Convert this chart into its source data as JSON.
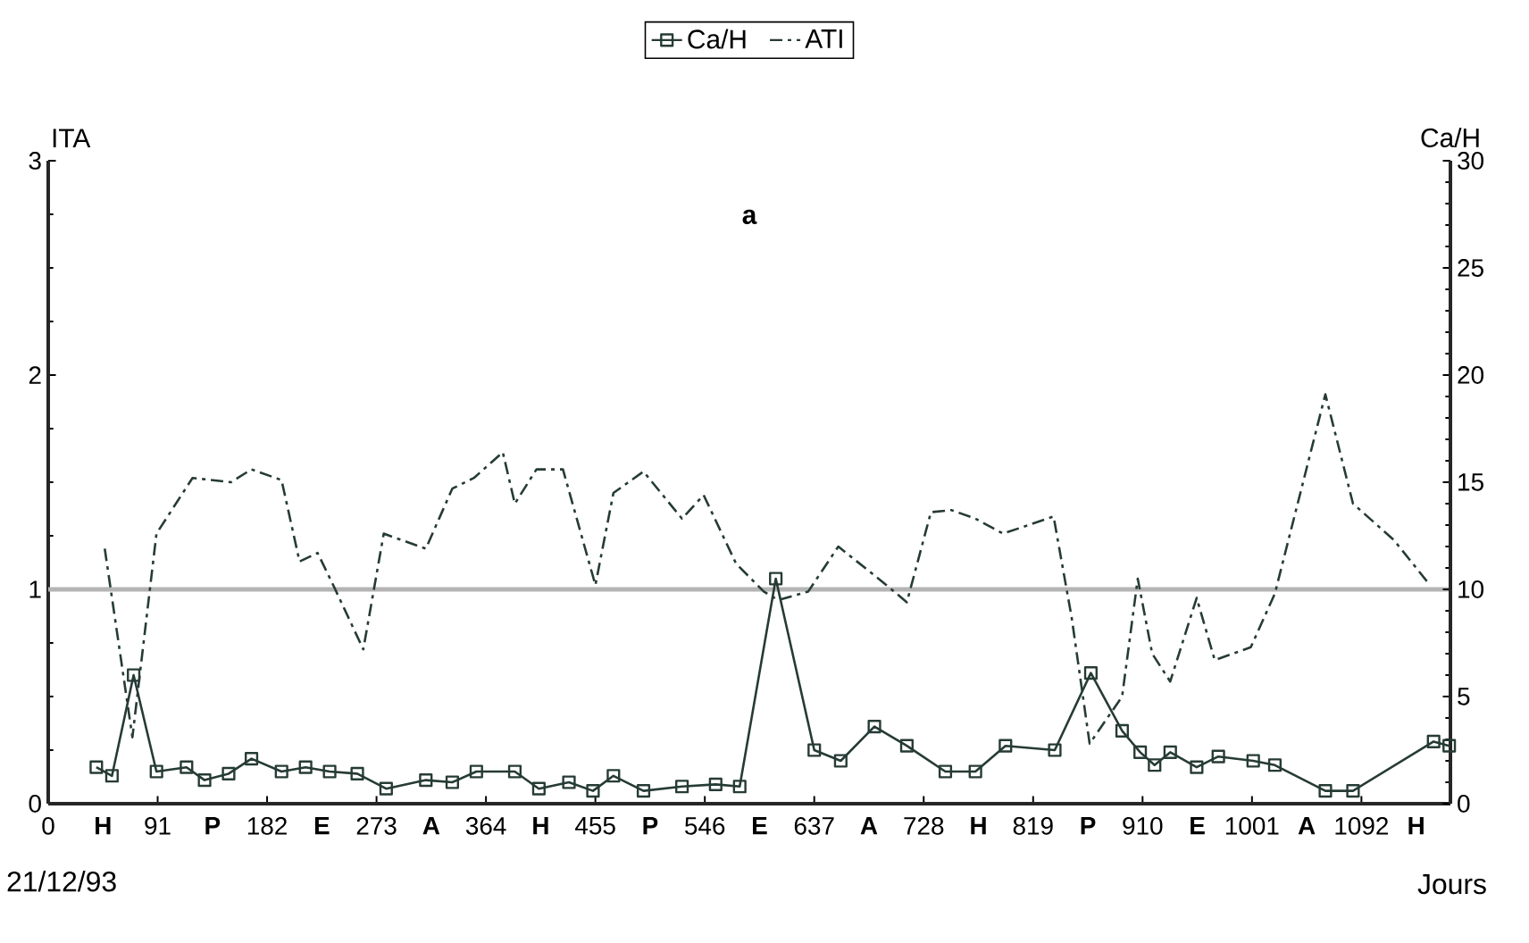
{
  "chart_data": {
    "type": "line",
    "title": "a",
    "xlabel": "Jours",
    "ylabel": "ITA",
    "y2label": "Ca/H",
    "annotations": [
      "21/12/93"
    ],
    "xlim": [
      0,
      1166
    ],
    "xticks": [
      0,
      {
        "value": 45.5,
        "label": "H"
      },
      91,
      {
        "value": 136.5,
        "label": "P"
      },
      182,
      {
        "value": 227.5,
        "label": "E"
      },
      273,
      {
        "value": 318.5,
        "label": "A"
      },
      364,
      {
        "value": 409.5,
        "label": "H"
      },
      455,
      {
        "value": 500.5,
        "label": "P"
      },
      546,
      {
        "value": 591.5,
        "label": "E"
      },
      637,
      {
        "value": 682.5,
        "label": "A"
      },
      728,
      {
        "value": 773.5,
        "label": "H"
      },
      819,
      {
        "value": 864.5,
        "label": "P"
      },
      910,
      {
        "value": 955.5,
        "label": "E"
      },
      1001,
      {
        "value": 1046.5,
        "label": "A"
      },
      1092,
      {
        "value": 1137.5,
        "label": "H"
      }
    ],
    "ylim": [
      0,
      3
    ],
    "yticks": [
      0,
      1,
      2,
      3
    ],
    "y2lim": [
      0,
      30
    ],
    "y2ticks": [
      0,
      5,
      10,
      15,
      20,
      25,
      30
    ],
    "ref_lines": [
      {
        "axis": "y",
        "value": 1,
        "color": "#b4b4b4"
      }
    ],
    "legend": "top",
    "grid": false,
    "series": [
      {
        "name": "Ca/H",
        "axis": "y2",
        "color": "#263b35",
        "marker": "square",
        "line_style": "solid",
        "x": [
          40,
          53,
          71,
          90,
          115,
          130,
          150,
          169,
          194,
          214,
          234,
          257,
          281,
          314,
          336,
          356,
          388,
          408,
          433,
          453,
          470,
          495,
          527,
          555,
          575,
          605,
          637,
          659,
          687,
          714,
          746,
          771,
          796,
          837,
          867,
          893,
          908,
          920,
          933,
          955,
          973,
          1002,
          1020,
          1062,
          1085,
          1152,
          1165
        ],
        "values": [
          1.7,
          1.3,
          6.0,
          1.5,
          1.7,
          1.1,
          1.4,
          2.1,
          1.5,
          1.7,
          1.5,
          1.4,
          0.7,
          1.1,
          1.0,
          1.5,
          1.5,
          0.7,
          1.0,
          0.6,
          1.3,
          0.6,
          0.8,
          0.9,
          0.8,
          10.5,
          2.5,
          2.0,
          3.6,
          2.7,
          1.5,
          1.5,
          2.7,
          2.5,
          6.1,
          3.4,
          2.4,
          1.8,
          2.4,
          1.7,
          2.2,
          2.0,
          1.8,
          0.6,
          0.6,
          2.9,
          2.7
        ]
      },
      {
        "name": "ATI",
        "axis": "y",
        "color": "#263b35",
        "marker": "none",
        "line_style": "dashed",
        "x": [
          47,
          70,
          90,
          120,
          152,
          169,
          194,
          209,
          224,
          237,
          262,
          279,
          314,
          336,
          354,
          378,
          388,
          406,
          428,
          455,
          470,
          495,
          527,
          545,
          572,
          595,
          607,
          632,
          657,
          697,
          714,
          734,
          751,
          771,
          794,
          836,
          851,
          866,
          893,
          906,
          918,
          933,
          955,
          970,
          1000,
          1020,
          1062,
          1085,
          1119,
          1149
        ],
        "values": [
          1.19,
          0.31,
          1.26,
          1.52,
          1.5,
          1.56,
          1.51,
          1.13,
          1.17,
          1.02,
          0.72,
          1.26,
          1.19,
          1.47,
          1.52,
          1.64,
          1.4,
          1.56,
          1.56,
          1.02,
          1.45,
          1.55,
          1.33,
          1.44,
          1.12,
          0.99,
          0.95,
          0.99,
          1.2,
          1.02,
          0.94,
          1.36,
          1.37,
          1.33,
          1.26,
          1.34,
          0.87,
          0.28,
          0.5,
          1.05,
          0.7,
          0.57,
          0.96,
          0.67,
          0.73,
          0.98,
          1.91,
          1.4,
          1.23,
          1.02
        ]
      }
    ]
  }
}
